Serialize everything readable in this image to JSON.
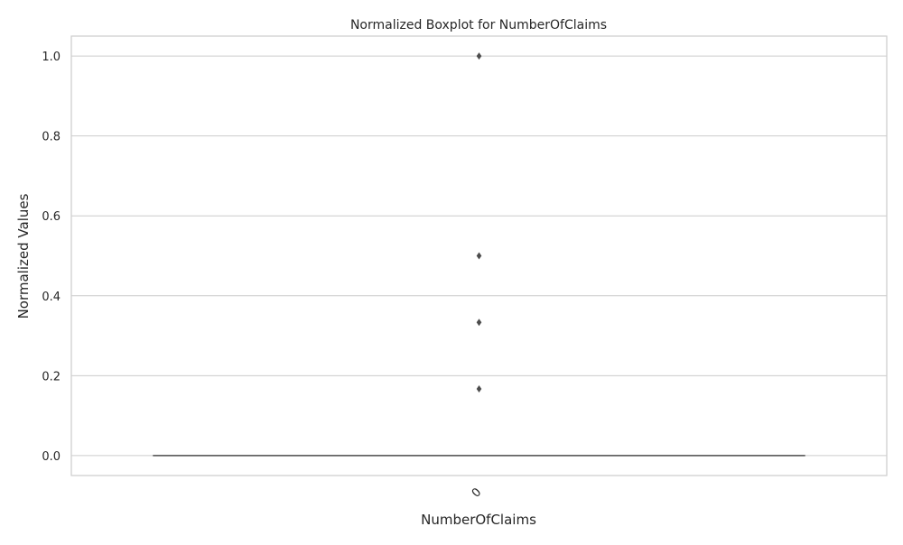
{
  "chart_data": {
    "type": "box",
    "title": "Normalized Boxplot for NumberOfClaims",
    "xlabel": "NumberOfClaims",
    "ylabel": "Normalized Values",
    "categories": [
      "0"
    ],
    "ylim": [
      -0.05,
      1.05
    ],
    "yticks": [
      0.0,
      0.2,
      0.4,
      0.6,
      0.8,
      1.0
    ],
    "ytick_labels": [
      "0.0",
      "0.2",
      "0.4",
      "0.6",
      "0.8",
      "1.0"
    ],
    "grid": true,
    "series": [
      {
        "category": "0",
        "min": 0.0,
        "q1": 0.0,
        "median": 0.0,
        "q3": 0.0,
        "max": 0.0,
        "outliers": [
          1.0,
          0.5,
          0.3333,
          0.1667
        ]
      }
    ],
    "colors": {
      "box": "#4c4c4c",
      "grid": "#cccccc",
      "frame": "#cccccc",
      "outlier": "#4c4c4c"
    }
  }
}
